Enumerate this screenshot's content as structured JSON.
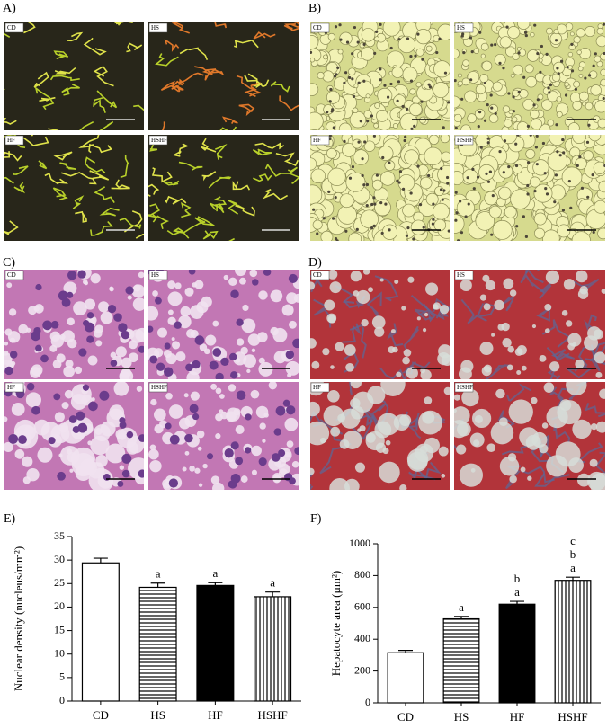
{
  "image_panels": [
    {
      "label": "A)",
      "subpanels": [
        "CD",
        "HS",
        "HF",
        "HSHF"
      ]
    },
    {
      "label": "B)",
      "subpanels": [
        "CD",
        "HS",
        "HF",
        "HSHF"
      ]
    },
    {
      "label": "C)",
      "subpanels": [
        "CD",
        "HS",
        "HF",
        "HSHF"
      ]
    },
    {
      "label": "D)",
      "subpanels": [
        "CD",
        "HS",
        "HF",
        "HSHF"
      ]
    }
  ],
  "chart_data": [
    {
      "type": "bar",
      "label": "E)",
      "ylabel": "Nuclear density (nucleus/mm²)",
      "categories": [
        "CD",
        "HS",
        "HF",
        "HSHF"
      ],
      "values": [
        29.4,
        24.2,
        24.6,
        22.2
      ],
      "errors": [
        1.0,
        0.9,
        0.6,
        1.0
      ],
      "annotations": [
        [],
        [
          "a"
        ],
        [
          "a"
        ],
        [
          "a"
        ]
      ],
      "patterns": [
        "none",
        "horizontal",
        "solid",
        "vertical"
      ],
      "color": "#000000",
      "ylim": [
        0,
        35
      ],
      "yticks": [
        0,
        5,
        10,
        15,
        20,
        25,
        30,
        35
      ]
    },
    {
      "type": "bar",
      "label": "F)",
      "ylabel": "Hepatocyte area (µm²)",
      "categories": [
        "CD",
        "HS",
        "HF",
        "HSHF"
      ],
      "values": [
        315,
        528,
        620,
        770
      ],
      "errors": [
        15,
        15,
        18,
        20
      ],
      "annotations": [
        [],
        [
          "a"
        ],
        [
          "b",
          "a"
        ],
        [
          "c",
          "b",
          "a"
        ]
      ],
      "patterns": [
        "none",
        "horizontal",
        "solid",
        "vertical"
      ],
      "color": "#000000",
      "ylim": [
        0,
        1000
      ],
      "yticks": [
        0,
        200,
        400,
        600,
        800,
        1000
      ]
    }
  ]
}
